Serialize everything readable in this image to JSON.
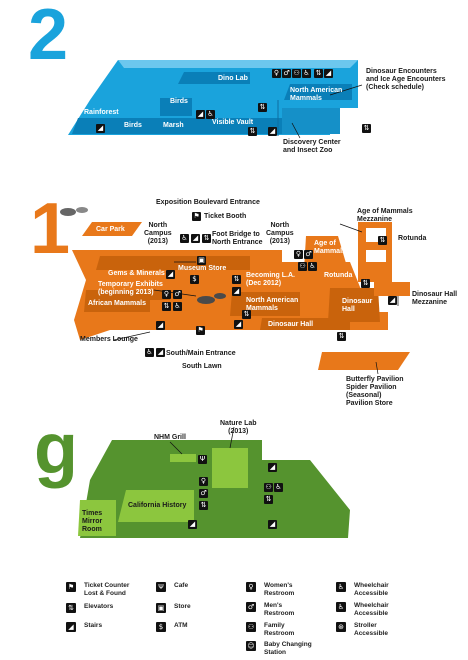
{
  "floors": {
    "two": {
      "number": "2",
      "color": "#1aa3dc",
      "labels": {
        "dino_lab": "Dino Lab",
        "dinosaur_encounters": "Dinosaur Encounters\nand Ice Age Encounters\n(Check schedule)",
        "north_american_mammals": "North American\nMammals",
        "rainforest": "Rainforest",
        "birds_left": "Birds",
        "birds_center": "Birds",
        "marsh": "Marsh",
        "visible_vault": "Visible Vault",
        "discovery_center": "Discovery Center\nand Insect Zoo"
      }
    },
    "one": {
      "number": "1",
      "color": "#e8781a",
      "labels": {
        "exposition_entrance": "Exposition Boulevard Entrance",
        "ticket_booth": "Ticket Booth",
        "car_park": "Car Park",
        "north_campus_left": "North\nCampus\n(2013)",
        "foot_bridge": "Foot Bridge to\nNorth Entrance",
        "north_campus_right": "North\nCampus\n(2013)",
        "age_of_mammals_mezz": "Age of Mammals\nMezzanine",
        "rotunda_right": "Rotunda",
        "age_of_mammals": "Age of\nMammals",
        "gems_minerals": "Gems & Minerals",
        "museum_store": "Museum Store",
        "temporary_exhibits": "Temporary Exhibits\n(beginning 2013)",
        "becoming_la": "Becoming L.A.\n(Dec 2012)",
        "rotunda_center": "Rotunda",
        "african_mammals": "African Mammals",
        "north_american_mammals": "North American\nMammals",
        "dinosaur_hall_right": "Dinosaur\nHall",
        "dinosaur_hall_mezz": "Dinosaur Hall\nMezzanine",
        "dinosaur_hall": "Dinosaur Hall",
        "members_lounge": "Members Lounge",
        "south_entrance": "South/Main Entrance",
        "south_lawn": "South Lawn",
        "butterfly_pavilion": "Butterfly Pavilion\nSpider Pavilion\n(Seasonal)\nPavilion Store"
      }
    },
    "ground": {
      "number": "g",
      "color": "#55932e",
      "accent": "#8cc63e",
      "labels": {
        "nature_lab": "Nature Lab\n(2013)",
        "nhm_grill": "NHM Grill",
        "times_mirror": "Times\nMirror\nRoom",
        "california_history": "California History"
      }
    }
  },
  "legend": [
    {
      "icon": "ticket-icon",
      "glyph": "⚑",
      "label": "Ticket Counter\nLost & Found"
    },
    {
      "icon": "elevator-icon",
      "glyph": "⇅",
      "label": "Elevators"
    },
    {
      "icon": "stairs-icon",
      "glyph": "◢",
      "label": "Stairs"
    },
    {
      "icon": "cafe-icon",
      "glyph": "Ψ",
      "label": "Cafe"
    },
    {
      "icon": "store-icon",
      "glyph": "▣",
      "label": "Store"
    },
    {
      "icon": "atm-icon",
      "glyph": "$",
      "label": "ATM"
    },
    {
      "icon": "womens-restroom-icon",
      "glyph": "♀",
      "label": "Women's\nRestroom"
    },
    {
      "icon": "mens-restroom-icon",
      "glyph": "♂",
      "label": "Men's\nRestroom"
    },
    {
      "icon": "family-restroom-icon",
      "glyph": "⚇",
      "label": "Family\nRestroom"
    },
    {
      "icon": "baby-changing-icon",
      "glyph": "☺",
      "label": "Baby Changing\nStation"
    },
    {
      "icon": "wheelchair-icon",
      "glyph": "♿",
      "label": "Wheelchair\nAccessible"
    },
    {
      "icon": "wheelchair-restroom-icon",
      "glyph": "♿",
      "label": "Wheelchair\nAccessible"
    },
    {
      "icon": "stroller-icon",
      "glyph": "⊛",
      "label": "Stroller\nAccessible"
    }
  ]
}
